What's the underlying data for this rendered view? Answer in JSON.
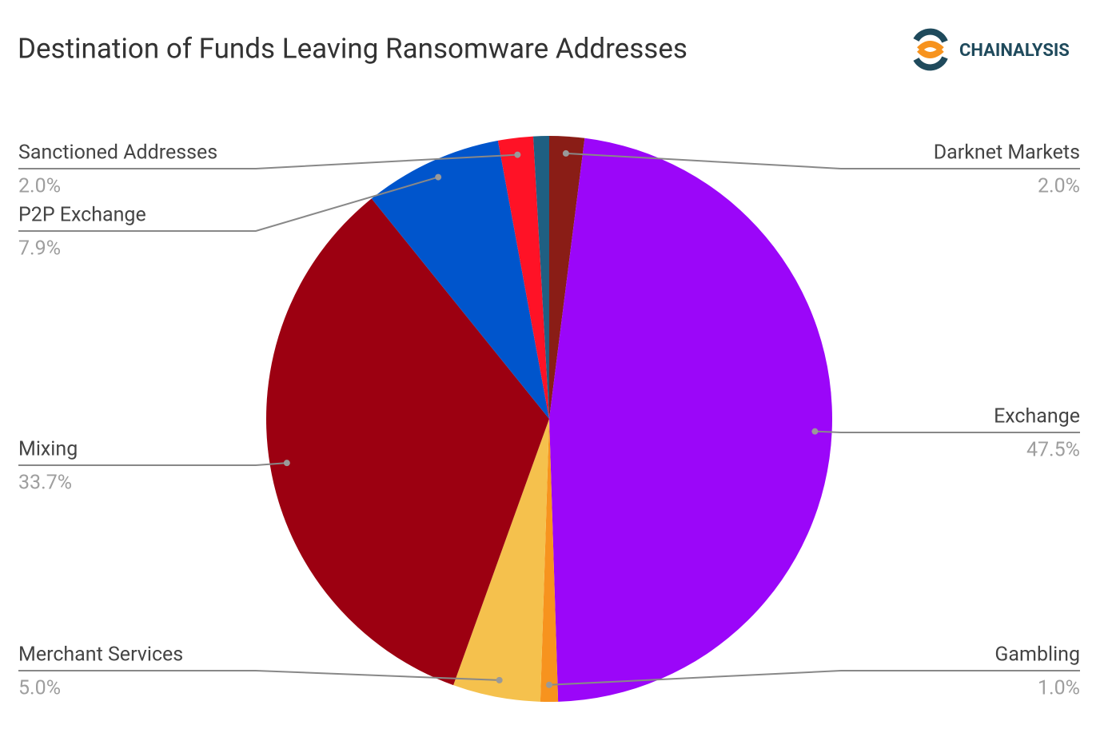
{
  "chart_data": {
    "type": "pie",
    "title": "Destination of Funds Leaving Ransomware Addresses",
    "logo": "CHAINALYSIS",
    "categories": [
      "Darknet Markets",
      "Exchange",
      "Gambling",
      "Merchant Services",
      "Mixing",
      "P2P Exchange",
      "Sanctioned Addresses",
      null
    ],
    "values": [
      2.0,
      47.5,
      1.0,
      5.0,
      33.7,
      7.9,
      2.0,
      0.9
    ],
    "value_labels": [
      "2.0%",
      "47.5%",
      "1.0%",
      "5.0%",
      "33.7%",
      "7.9%",
      "2.0%",
      null
    ],
    "colors": [
      "#8a1d16",
      "#9b06f9",
      "#f7931e",
      "#f5c14d",
      "#9c0011",
      "#0055cc",
      "#ff1226",
      "#1f5f82"
    ]
  }
}
